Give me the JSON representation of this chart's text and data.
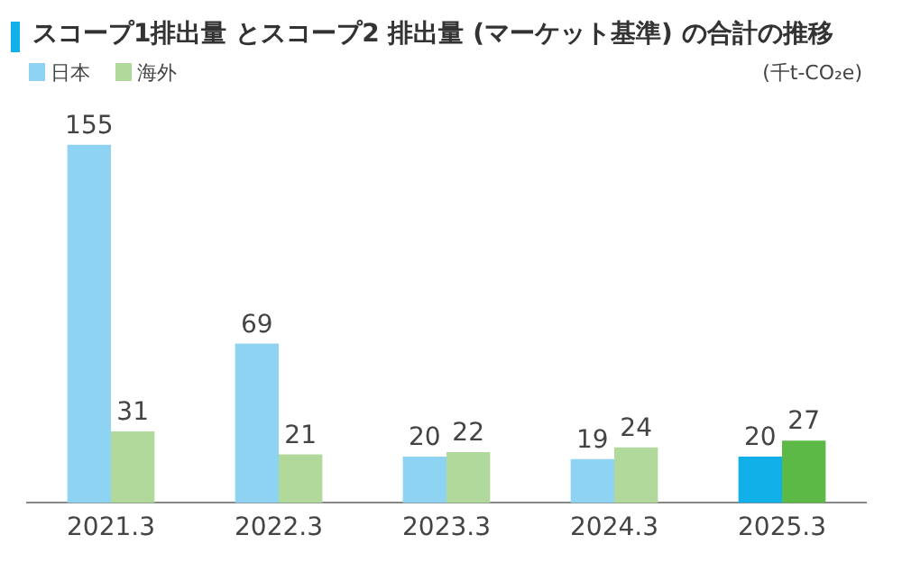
{
  "chart_data": {
    "type": "bar",
    "title": "スコープ1排出量 とスコープ2 排出量 (マーケット基準) の合計の推移",
    "annotations": [
      "(千t-CO₂e)"
    ],
    "categories": [
      "2021.3",
      "2022.3",
      "2023.3",
      "2024.3",
      "2025.3"
    ],
    "series": [
      {
        "name": "日本",
        "color": "#8fd3f2",
        "colors": [
          "#8fd3f2",
          "#8fd3f2",
          "#8fd3f2",
          "#8fd3f2",
          "#12b0e8"
        ],
        "values": [
          155,
          69,
          20,
          19,
          20
        ]
      },
      {
        "name": "海外",
        "color": "#b1d99b",
        "colors": [
          "#b1d99b",
          "#b1d99b",
          "#b1d99b",
          "#b1d99b",
          "#5cb946"
        ],
        "values": [
          31,
          21,
          22,
          24,
          27
        ]
      }
    ],
    "data_labels": true,
    "legend": "top left",
    "grid": false
  }
}
